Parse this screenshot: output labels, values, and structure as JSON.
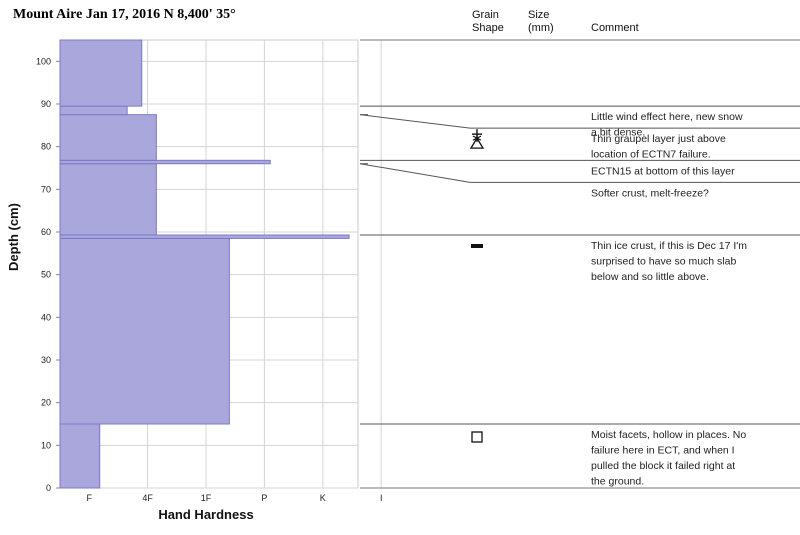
{
  "header": {
    "title": "Mount Aire Jan 17, 2016    N   8,400'   35°"
  },
  "columns": {
    "grain_shape": [
      "Grain",
      "Shape"
    ],
    "size": [
      "Size",
      "(mm)"
    ],
    "comment": "Comment"
  },
  "chart_data": {
    "type": "bar",
    "orientation": "horizontal-step",
    "xlabel": "Hand Hardness",
    "ylabel": "Depth (cm)",
    "ylim": [
      0,
      105
    ],
    "yticks": [
      0,
      10,
      20,
      30,
      40,
      50,
      60,
      70,
      80,
      90,
      100
    ],
    "xcategories": [
      "F",
      "4F",
      "1F",
      "P",
      "K",
      "I"
    ],
    "grid": true,
    "layers": [
      {
        "bottom": 0,
        "top": 15,
        "hardness": 0.68
      },
      {
        "bottom": 15,
        "top": 58.5,
        "hardness": 2.9
      },
      {
        "bottom": 58.5,
        "top": 59.3,
        "hardness": 4.95
      },
      {
        "bottom": 59.3,
        "top": 76,
        "hardness": 1.65
      },
      {
        "bottom": 76,
        "top": 76.8,
        "hardness": 3.6
      },
      {
        "bottom": 76.8,
        "top": 87.5,
        "hardness": 1.65
      },
      {
        "bottom": 87.5,
        "top": 89.5,
        "hardness": 1.15
      },
      {
        "bottom": 89.5,
        "top": 105,
        "hardness": 1.4
      }
    ]
  },
  "notes": [
    {
      "depth": 89.5,
      "symbol": "plus",
      "lines": [
        "Little wind effect here, new snow",
        "a bit dense."
      ]
    },
    {
      "depth": 87.5,
      "symbol": "graupel",
      "lines": [
        "Thin graupel layer just above",
        "location of ECTN7 failure."
      ]
    },
    {
      "depth": 76.8,
      "symbol": "",
      "lines": [
        "ECTN15 at bottom of this layer"
      ]
    },
    {
      "depth": 76,
      "symbol": "",
      "lines": [
        "Softer crust, melt-freeze?"
      ]
    },
    {
      "depth": 59.3,
      "symbol": "ice-crust",
      "lines": [
        "Thin ice crust, if this is Dec 17 I'm",
        "surprised to have so much slab",
        "below and so little above."
      ]
    },
    {
      "depth": 15,
      "symbol": "square",
      "lines": [
        "Moist facets, hollow in places. No",
        "failure here in ECT, and when I",
        "pulled the block it failed right at",
        "the ground."
      ]
    }
  ]
}
